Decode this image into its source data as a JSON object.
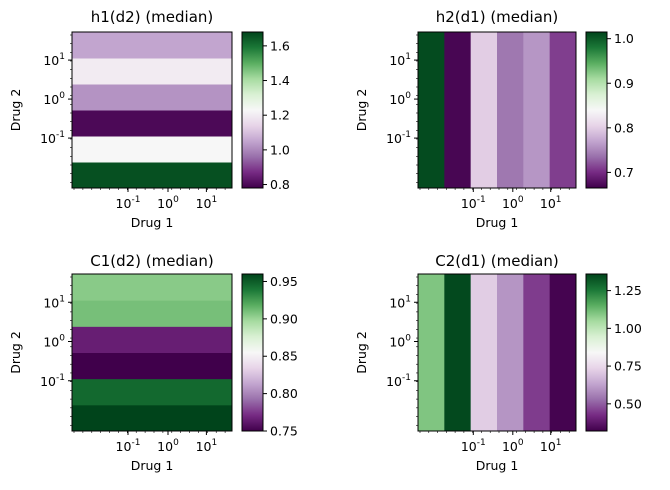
{
  "chart_data": [
    {
      "type": "heatmap",
      "title": "h1(d2) (median)",
      "xlabel": "Drug 1",
      "ylabel": "Drug 2",
      "x_ticks": [
        "10^-1",
        "10^0",
        "10^1"
      ],
      "y_ticks": [
        "10^-1",
        "10^0",
        "10^1"
      ],
      "x_scale": "log",
      "y_scale": "log",
      "orientation": "horizontal-bands",
      "bands": [
        1.66,
        1.23,
        0.8,
        1.02,
        1.2,
        1.05
      ],
      "colorbar": {
        "min": 0.78,
        "max": 1.68,
        "ticks": [
          "0.8",
          "1.0",
          "1.2",
          "1.4",
          "1.6"
        ],
        "tick_values": [
          0.8,
          1.0,
          1.2,
          1.4,
          1.6
        ]
      }
    },
    {
      "type": "heatmap",
      "title": "h2(d1) (median)",
      "xlabel": "Drug 1",
      "ylabel": "Drug 2",
      "x_ticks": [
        "10^-1",
        "10^0",
        "10^1"
      ],
      "y_ticks": [
        "10^-1",
        "10^0",
        "10^1"
      ],
      "x_scale": "log",
      "y_scale": "log",
      "orientation": "vertical-bands",
      "bands": [
        1.01,
        0.67,
        0.8,
        0.74,
        0.76,
        0.71
      ],
      "colorbar": {
        "min": 0.665,
        "max": 1.015,
        "ticks": [
          "0.7",
          "0.8",
          "0.9",
          "1.0"
        ],
        "tick_values": [
          0.7,
          0.8,
          0.9,
          1.0
        ]
      }
    },
    {
      "type": "heatmap",
      "title": "C1(d2) (median)",
      "xlabel": "Drug 1",
      "ylabel": "Drug 2",
      "x_ticks": [
        "10^-1",
        "10^0",
        "10^1"
      ],
      "y_ticks": [
        "10^-1",
        "10^0",
        "10^1"
      ],
      "x_scale": "log",
      "y_scale": "log",
      "orientation": "horizontal-bands",
      "bands": [
        0.96,
        0.945,
        0.75,
        0.765,
        0.91,
        0.905
      ],
      "colorbar": {
        "min": 0.75,
        "max": 0.96,
        "ticks": [
          "0.75",
          "0.80",
          "0.85",
          "0.90",
          "0.95"
        ],
        "tick_values": [
          0.75,
          0.8,
          0.85,
          0.9,
          0.95
        ]
      }
    },
    {
      "type": "heatmap",
      "title": "C2(d1) (median)",
      "xlabel": "Drug 1",
      "ylabel": "Drug 2",
      "x_ticks": [
        "10^-1",
        "10^0",
        "10^1"
      ],
      "y_ticks": [
        "10^-1",
        "10^0",
        "10^1"
      ],
      "x_scale": "log",
      "y_scale": "log",
      "orientation": "vertical-bands",
      "bands": [
        1.1,
        1.35,
        0.72,
        0.6,
        0.45,
        0.33
      ],
      "colorbar": {
        "min": 0.32,
        "max": 1.36,
        "ticks": [
          "0.50",
          "0.75",
          "1.00",
          "1.25"
        ],
        "tick_values": [
          0.5,
          0.75,
          1.0,
          1.25
        ]
      }
    }
  ]
}
